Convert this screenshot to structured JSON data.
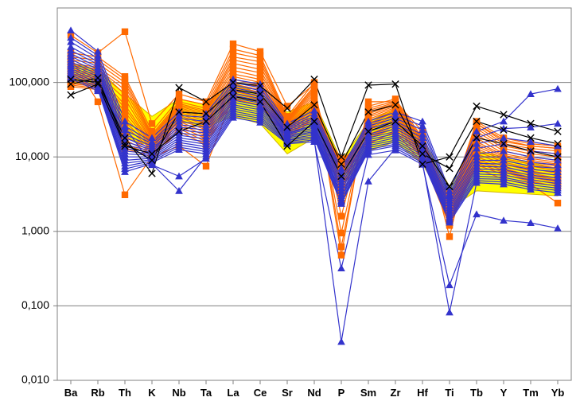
{
  "chart": {
    "type": "line",
    "categories": [
      "Ba",
      "Rb",
      "Th",
      "K",
      "Nb",
      "Ta",
      "La",
      "Ce",
      "Sr",
      "Nd",
      "P",
      "Sm",
      "Zr",
      "Hf",
      "Ti",
      "Tb",
      "Y",
      "Tm",
      "Yb"
    ],
    "y_axis": {
      "scale": "log",
      "min": 0.01,
      "max": 1000,
      "ticks": [
        0.01,
        0.1,
        1,
        10,
        100
      ],
      "tick_labels": [
        "0,010",
        "0,100",
        "1,000",
        "10,000",
        "100,000"
      ]
    },
    "plot_background": "#ffffff",
    "grid_color": "#808080",
    "grid_width": 1,
    "border_color": "#808080",
    "border_width": 1,
    "xtick_fontsize": 13,
    "ytick_fontsize": 14,
    "line_width": 1.2,
    "marker_size": 4.2,
    "yellow_band": {
      "fill": "#ffff00",
      "stroke": "#d4b500",
      "upper": [
        180,
        150,
        70,
        35,
        60,
        50,
        100,
        70,
        40,
        55,
        9,
        30,
        45,
        18,
        4,
        12,
        null,
        null,
        7
      ],
      "lower": [
        100,
        90,
        18,
        14,
        30,
        25,
        35,
        28,
        11,
        18,
        4,
        12,
        16,
        8,
        2,
        3.5,
        null,
        null,
        3
      ]
    },
    "series": [
      {
        "color": "#ff6a00",
        "marker": "square",
        "data": [
          250,
          220,
          120,
          22,
          60,
          50,
          280,
          230,
          35,
          100,
          0.62,
          48,
          60,
          18,
          2.5,
          30,
          18,
          15,
          14
        ]
      },
      {
        "color": "#ff6a00",
        "marker": "square",
        "data": [
          220,
          200,
          110,
          20,
          55,
          45,
          250,
          210,
          33,
          90,
          0.95,
          45,
          56,
          17,
          2.3,
          28,
          16,
          14,
          13
        ]
      },
      {
        "color": "#ff6a00",
        "marker": "square",
        "data": [
          200,
          180,
          100,
          19,
          52,
          42,
          220,
          190,
          32,
          85,
          1.6,
          42,
          54,
          17,
          2.2,
          26,
          15,
          13,
          12
        ]
      },
      {
        "color": "#ff6a00",
        "marker": "square",
        "data": [
          180,
          160,
          90,
          18,
          50,
          40,
          200,
          170,
          31,
          80,
          2.4,
          40,
          52,
          16,
          2.1,
          24,
          14,
          12,
          11
        ]
      },
      {
        "color": "#ff6a00",
        "marker": "square",
        "data": [
          170,
          150,
          80,
          17,
          48,
          38,
          180,
          150,
          30,
          75,
          3.0,
          38,
          50,
          16,
          2.0,
          22,
          13,
          11,
          10
        ]
      },
      {
        "color": "#ff6a00",
        "marker": "square",
        "data": [
          160,
          140,
          70,
          16,
          46,
          36,
          160,
          135,
          29,
          70,
          3.5,
          36,
          48,
          15,
          1.9,
          20,
          12,
          10,
          9
        ]
      },
      {
        "color": "#ff6a00",
        "marker": "square",
        "data": [
          150,
          130,
          60,
          15.5,
          44,
          34,
          145,
          120,
          28,
          65,
          4.2,
          34,
          46,
          15,
          1.8,
          18,
          11,
          9.5,
          8.5
        ]
      },
      {
        "color": "#ff6a00",
        "marker": "square",
        "data": [
          140,
          125,
          50,
          15,
          42,
          32,
          130,
          110,
          27,
          60,
          5.0,
          32,
          44,
          14,
          1.7,
          16,
          10.5,
          9,
          8
        ]
      },
      {
        "color": "#ff6a00",
        "marker": "square",
        "data": [
          130,
          120,
          45,
          14.5,
          40,
          30,
          120,
          100,
          26,
          56,
          5.5,
          30,
          42,
          14,
          1.65,
          15,
          10,
          8.5,
          7.5
        ]
      },
      {
        "color": "#ff6a00",
        "marker": "square",
        "data": [
          125,
          115,
          40,
          14,
          38,
          28,
          110,
          92,
          25,
          53,
          6.0,
          28,
          40,
          13,
          1.6,
          14,
          9.5,
          8,
          7
        ]
      },
      {
        "color": "#ff6a00",
        "marker": "square",
        "data": [
          120,
          110,
          35,
          13.5,
          36,
          27,
          102,
          86,
          24,
          50,
          6.4,
          26,
          38,
          13,
          1.55,
          13,
          9,
          7.5,
          6.5
        ]
      },
      {
        "color": "#ff6a00",
        "marker": "square",
        "data": [
          115,
          105,
          30,
          13,
          34,
          25,
          95,
          80,
          23,
          47,
          6.8,
          25,
          36,
          12.5,
          1.5,
          12,
          8.5,
          7,
          6
        ]
      },
      {
        "color": "#ff6a00",
        "marker": "square",
        "data": [
          110,
          100,
          26,
          12.5,
          32,
          23,
          88,
          74,
          22,
          45,
          7.2,
          24,
          34,
          12,
          1.45,
          11,
          8,
          6.5,
          5.6
        ]
      },
      {
        "color": "#ff6a00",
        "marker": "square",
        "data": [
          105,
          95,
          22,
          12,
          30,
          21,
          82,
          69,
          21,
          42,
          7.6,
          23,
          32,
          11.5,
          1.4,
          10,
          7.5,
          6,
          5.2
        ]
      },
      {
        "color": "#ff6a00",
        "marker": "square",
        "data": [
          100,
          92,
          19,
          11.5,
          28,
          19,
          76,
          64,
          20,
          40,
          8.0,
          22,
          30,
          11,
          1.35,
          9.3,
          7,
          5.6,
          4.9
        ]
      },
      {
        "color": "#ff6a00",
        "marker": "square",
        "data": [
          96,
          88,
          17,
          11,
          26,
          17.5,
          71,
          59,
          19,
          37,
          8.4,
          20,
          28,
          10.5,
          1.3,
          8.8,
          6.6,
          5.3,
          4.6
        ]
      },
      {
        "color": "#ff6a00",
        "marker": "square",
        "data": [
          92,
          84,
          15,
          10.5,
          24,
          16,
          66,
          55,
          18,
          35,
          8.8,
          19,
          26,
          10,
          1.25,
          8.3,
          6.2,
          5,
          4.3
        ]
      },
      {
        "color": "#ff6a00",
        "marker": "square",
        "data": [
          88,
          80,
          13,
          10,
          22,
          14.5,
          60,
          50,
          17,
          33,
          8.0,
          18,
          24,
          9.5,
          1.2,
          7.8,
          5.8,
          4.7,
          4.0
        ]
      },
      {
        "color": "#ff6a00",
        "marker": "square",
        "data": [
          430,
          250,
          480,
          28,
          70,
          55,
          330,
          260,
          48,
          95,
          0.48,
          55,
          55,
          22,
          0.85,
          28,
          17,
          14,
          13
        ]
      },
      {
        "color": "#ff6a00",
        "marker": "square",
        "data": [
          210,
          55,
          3.1,
          10,
          14,
          7.5,
          65,
          55,
          20,
          32,
          9.5,
          15,
          22,
          8,
          3.2,
          7,
          5,
          4.3,
          2.4
        ]
      },
      {
        "color": "#3333cc",
        "marker": "triangle",
        "data": [
          500,
          260,
          30,
          18,
          40,
          38,
          110,
          95,
          28,
          42,
          7.0,
          30,
          40,
          30,
          3.5,
          22,
          30,
          70,
          82
        ]
      },
      {
        "color": "#3333cc",
        "marker": "triangle",
        "data": [
          400,
          230,
          26,
          16,
          36,
          34,
          100,
          85,
          26,
          38,
          6.5,
          28,
          36,
          26,
          3.2,
          18,
          24,
          25,
          28
        ]
      },
      {
        "color": "#3333cc",
        "marker": "triangle",
        "data": [
          350,
          210,
          23,
          15,
          33,
          30,
          92,
          78,
          25,
          35,
          6.0,
          26,
          33,
          23,
          3.0,
          15,
          18,
          16,
          14
        ]
      },
      {
        "color": "#3333cc",
        "marker": "triangle",
        "data": [
          300,
          190,
          20,
          14,
          30,
          27,
          85,
          72,
          24,
          33,
          5.5,
          24,
          30,
          20,
          2.8,
          13,
          15,
          12,
          11
        ]
      },
      {
        "color": "#3333cc",
        "marker": "triangle",
        "data": [
          270,
          175,
          18,
          13,
          27,
          25,
          78,
          66,
          23,
          31,
          5.0,
          22,
          28,
          18,
          2.6,
          11,
          12,
          10,
          9
        ]
      },
      {
        "color": "#3333cc",
        "marker": "triangle",
        "data": [
          245,
          160,
          16,
          12.5,
          25,
          23,
          72,
          61,
          22,
          29,
          4.6,
          20,
          26,
          16,
          2.4,
          10,
          10,
          8.5,
          7.8
        ]
      },
      {
        "color": "#3333cc",
        "marker": "triangle",
        "data": [
          225,
          150,
          14.5,
          12,
          23,
          21,
          67,
          57,
          21,
          27,
          4.2,
          19,
          24,
          15,
          2.2,
          9,
          9,
          7.5,
          7
        ]
      },
      {
        "color": "#3333cc",
        "marker": "triangle",
        "data": [
          205,
          138,
          13,
          11.5,
          21,
          19,
          62,
          53,
          20.5,
          26,
          3.8,
          18,
          22,
          14,
          2.05,
          8.2,
          8,
          6.8,
          6.3
        ]
      },
      {
        "color": "#3333cc",
        "marker": "triangle",
        "data": [
          190,
          128,
          12,
          11,
          19.5,
          17.5,
          58,
          49,
          20,
          24.5,
          3.5,
          17,
          20.5,
          13,
          1.9,
          7.5,
          7.3,
          6.2,
          5.7
        ]
      },
      {
        "color": "#3333cc",
        "marker": "triangle",
        "data": [
          176,
          120,
          11,
          10.5,
          18,
          16,
          54,
          46,
          19.3,
          23,
          3.2,
          16,
          19.2,
          12.2,
          1.78,
          6.9,
          6.7,
          5.7,
          5.2
        ]
      },
      {
        "color": "#3333cc",
        "marker": "triangle",
        "data": [
          165,
          112,
          10,
          10,
          16.8,
          14.8,
          50,
          43,
          18.6,
          22,
          3.0,
          15,
          18,
          11.4,
          1.67,
          6.4,
          6.2,
          5.3,
          4.8
        ]
      },
      {
        "color": "#3333cc",
        "marker": "triangle",
        "data": [
          154,
          105,
          9,
          9.6,
          15.6,
          13.7,
          47,
          40,
          18,
          21,
          2.8,
          14.2,
          16.8,
          10.7,
          1.57,
          5.9,
          5.7,
          4.9,
          4.4
        ]
      },
      {
        "color": "#3333cc",
        "marker": "triangle",
        "data": [
          144,
          98,
          8.2,
          9.2,
          14.5,
          12.7,
          44,
          37.5,
          17.3,
          19.8,
          2.6,
          13.4,
          15.8,
          10,
          1.48,
          5.5,
          5.3,
          4.5,
          4.1
        ]
      },
      {
        "color": "#3333cc",
        "marker": "triangle",
        "data": [
          135,
          92,
          7.5,
          8.8,
          13.5,
          11.8,
          41,
          35,
          16.7,
          18.8,
          2.5,
          12.6,
          14.8,
          9.4,
          1.4,
          5.1,
          5,
          4.2,
          3.8
        ]
      },
      {
        "color": "#3333cc",
        "marker": "triangle",
        "data": [
          126,
          86,
          6.9,
          8.4,
          12.5,
          11,
          38.4,
          33,
          16.1,
          17.8,
          2.35,
          12,
          14,
          8.9,
          1.32,
          4.8,
          4.6,
          3.9,
          3.55
        ]
      },
      {
        "color": "#3333cc",
        "marker": "triangle",
        "data": [
          118,
          81,
          6.3,
          8.1,
          3.5,
          10.2,
          36,
          31,
          15.5,
          16.9,
          0.033,
          4.7,
          13.1,
          8.4,
          0.082,
          4.5,
          4.3,
          3.65,
          3.3
        ]
      },
      {
        "color": "#3333cc",
        "marker": "triangle",
        "data": [
          112,
          77,
          25,
          7.8,
          5.5,
          9.5,
          33.7,
          29,
          15,
          16,
          0.32,
          10.7,
          12.3,
          7.9,
          0.19,
          1.7,
          1.4,
          1.3,
          1.1
        ]
      },
      {
        "color": "#000000",
        "marker": "x",
        "data": [
          110,
          100,
          18,
          6.0,
          85,
          55,
          100,
          90,
          45,
          110,
          10,
          92,
          95,
          8,
          10,
          48,
          37,
          28,
          22
        ]
      },
      {
        "color": "#000000",
        "marker": "x",
        "data": [
          68,
          95,
          14,
          11,
          22,
          30,
          65,
          55,
          14,
          30,
          5.5,
          22,
          30,
          14,
          4.0,
          18,
          15,
          12,
          10
        ]
      },
      {
        "color": "#000000",
        "marker": "x",
        "data": [
          95,
          115,
          15,
          9.0,
          40,
          38,
          80,
          70,
          25,
          50,
          8.0,
          40,
          50,
          11,
          7.0,
          30,
          23,
          18,
          15
        ]
      }
    ]
  }
}
